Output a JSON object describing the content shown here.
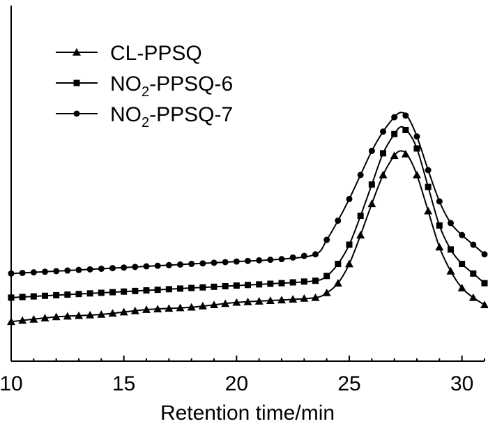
{
  "chart_data": {
    "type": "line",
    "xlabel": "Retention time/min",
    "ylabel": "",
    "xlim": [
      10,
      31
    ],
    "ylim": [
      0,
      1
    ],
    "xticks": [
      10,
      15,
      20,
      25,
      30
    ],
    "xtick_labels": [
      "10",
      "15",
      "20",
      "25",
      "30"
    ],
    "legend_position": "top-left",
    "series": [
      {
        "name": "CL-PPSQ",
        "name_main": "CL-PPSQ",
        "name_sub": "",
        "name_tail": "",
        "marker": "triangle",
        "x": [
          10,
          12,
          14,
          16,
          18,
          20,
          22,
          23.5,
          24,
          24.5,
          25,
          25.5,
          26,
          26.5,
          27,
          27.3,
          27.6,
          28,
          28.5,
          29,
          29.5,
          30,
          30.5,
          31
        ],
        "y": [
          0.17,
          0.19,
          0.2,
          0.22,
          0.23,
          0.25,
          0.26,
          0.27,
          0.29,
          0.33,
          0.41,
          0.53,
          0.66,
          0.78,
          0.86,
          0.88,
          0.86,
          0.78,
          0.63,
          0.48,
          0.38,
          0.31,
          0.27,
          0.24
        ]
      },
      {
        "name": "NO2-PPSQ-6",
        "name_main": "NO",
        "name_sub": "2",
        "name_tail": "-PPSQ-6",
        "marker": "square",
        "x": [
          10,
          12,
          14,
          16,
          18,
          20,
          22,
          23.5,
          24,
          24.5,
          25,
          25.5,
          26,
          26.5,
          27,
          27.3,
          27.6,
          28,
          28.5,
          29,
          29.5,
          30,
          30.5,
          31
        ],
        "y": [
          0.27,
          0.28,
          0.29,
          0.3,
          0.31,
          0.32,
          0.33,
          0.34,
          0.36,
          0.41,
          0.49,
          0.61,
          0.74,
          0.87,
          0.95,
          0.98,
          0.96,
          0.89,
          0.73,
          0.57,
          0.47,
          0.41,
          0.37,
          0.33
        ]
      },
      {
        "name": "NO2-PPSQ-7",
        "name_main": "NO",
        "name_sub": "2",
        "name_tail": "-PPSQ-7",
        "marker": "circle",
        "x": [
          10,
          12,
          14,
          16,
          18,
          20,
          22,
          23.5,
          24,
          24.5,
          25,
          25.5,
          26,
          26.5,
          27,
          27.3,
          27.6,
          28,
          28.5,
          29,
          29.5,
          30,
          30.5,
          31
        ],
        "y": [
          0.37,
          0.38,
          0.39,
          0.4,
          0.41,
          0.42,
          0.43,
          0.45,
          0.51,
          0.59,
          0.68,
          0.78,
          0.88,
          0.96,
          1.02,
          1.04,
          1.02,
          0.94,
          0.8,
          0.67,
          0.58,
          0.53,
          0.49,
          0.45
        ]
      }
    ]
  }
}
